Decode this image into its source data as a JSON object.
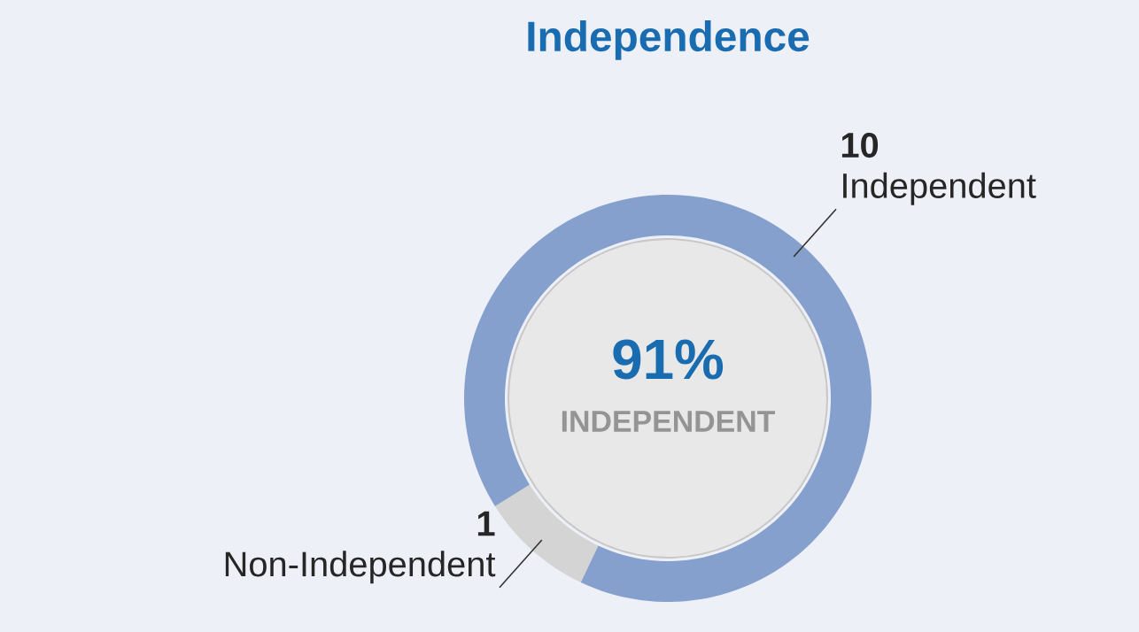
{
  "chart_data": {
    "type": "donut",
    "title": "Independence",
    "categories": [
      "Independent",
      "Non-Independent"
    ],
    "values": [
      10,
      1
    ],
    "colors": [
      "#85a0cd",
      "#d4d4d4"
    ],
    "value_labels": [
      "10",
      "1"
    ],
    "annotations": [
      "91%",
      "INDEPENDENT"
    ]
  }
}
